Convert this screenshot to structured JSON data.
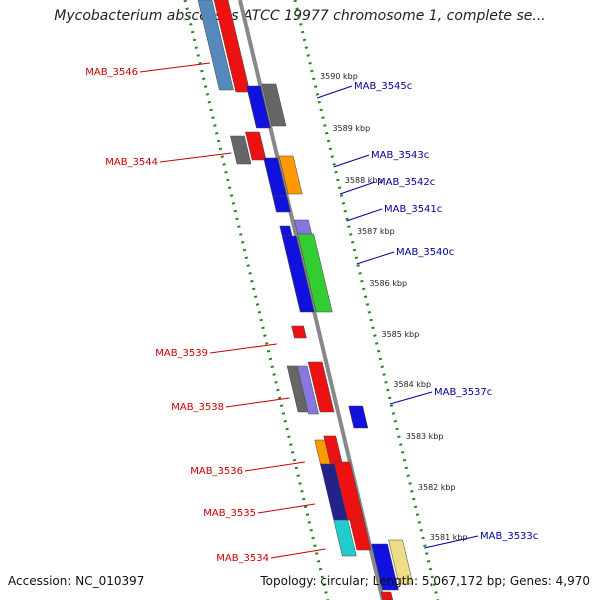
{
  "title": "Mycobacterium abscessus ATCC 19977 chromosome 1, complete se...",
  "footer": {
    "accession": "Accession: NC_010397",
    "stats": "Topology: circular; Length: 5,067,172 bp; Genes: 4,970"
  },
  "kbp_labels": [
    "3590 kbp",
    "3589 kbp",
    "3588 kbp",
    "3587 kbp",
    "3586 kbp",
    "3585 kbp",
    "3584 kbp",
    "3583 kbp",
    "3582 kbp",
    "3581 kbp"
  ],
  "left_labels": [
    "MAB_3546",
    "MAB_3544",
    "MAB_3539",
    "MAB_3538",
    "MAB_3536",
    "MAB_3535",
    "MAB_3534"
  ],
  "right_labels": [
    "MAB_3545c",
    "MAB_3543c",
    "MAB_3542c",
    "MAB_3541c",
    "MAB_3540c",
    "MAB_3537c",
    "MAB_3533c"
  ],
  "colors": {
    "red": "#ee1111",
    "blue": "#1111dd",
    "grey": "#666666",
    "steel": "#5588bb",
    "orange": "#ff9900",
    "green": "#33cc33",
    "violet": "#8877dd",
    "navy": "#222288",
    "cyan": "#22cccc",
    "khaki": "#eedd88",
    "axis": "#888888",
    "ticks": "#228822",
    "left_label": "#cc0000",
    "right_label": "#000099"
  }
}
